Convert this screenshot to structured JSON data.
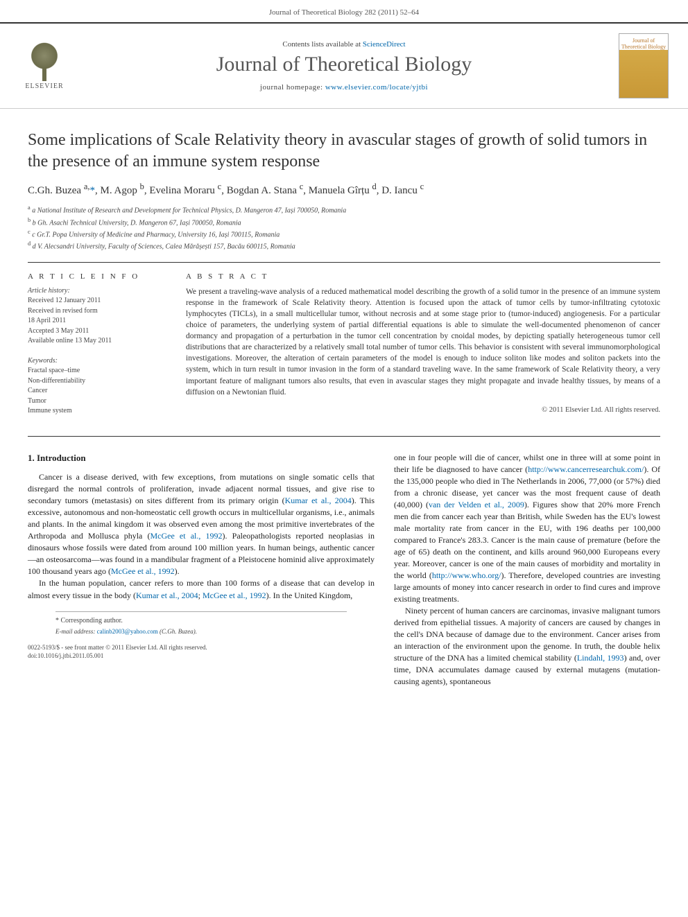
{
  "header": {
    "running_head": "Journal of Theoretical Biology 282 (2011) 52–64"
  },
  "banner": {
    "elsevier_label": "ELSEVIER",
    "contents_line_prefix": "Contents lists available at ",
    "contents_link": "ScienceDirect",
    "journal_name": "Journal of Theoretical Biology",
    "homepage_prefix": "journal homepage: ",
    "homepage_url": "www.elsevier.com/locate/yjtbi",
    "cover_title": "Journal of Theoretical Biology"
  },
  "article": {
    "title": "Some implications of Scale Relativity theory in avascular stages of growth of solid tumors in the presence of an immune system response",
    "authors_html": "C.Gh. Buzea <sup>a,</sup>*, M. Agop <sup>b</sup>, Evelina Moraru <sup>c</sup>, Bogdan A. Stana <sup>c</sup>, Manuela Gîrțu <sup>d</sup>, D. Iancu <sup>c</sup>",
    "affiliations": [
      "a National Institute of Research and Development for Technical Physics, D. Mangeron 47, Iași 700050, Romania",
      "b Gh. Asachi Technical University, D. Mangeron 67, Iași 700050, Romania",
      "c Gr.T. Popa University of Medicine and Pharmacy, University 16, Iași 700115, Romania",
      "d V. Alecsandri University, Faculty of Sciences, Calea Mărășești 157, Bacău 600115, Romania"
    ]
  },
  "meta": {
    "article_info_heading": "A R T I C L E   I N F O",
    "history_label": "Article history:",
    "history_lines": [
      "Received 12 January 2011",
      "Received in revised form",
      "18 April 2011",
      "Accepted 3 May 2011",
      "Available online 13 May 2011"
    ],
    "keywords_label": "Keywords:",
    "keywords": [
      "Fractal space–time",
      "Non-differentiability",
      "Cancer",
      "Tumor",
      "Immune system"
    ]
  },
  "abstract": {
    "heading": "A B S T R A C T",
    "text": "We present a traveling-wave analysis of a reduced mathematical model describing the growth of a solid tumor in the presence of an immune system response in the framework of Scale Relativity theory. Attention is focused upon the attack of tumor cells by tumor-infiltrating cytotoxic lymphocytes (TICLs), in a small multicellular tumor, without necrosis and at some stage prior to (tumor-induced) angiogenesis. For a particular choice of parameters, the underlying system of partial differential equations is able to simulate the well-documented phenomenon of cancer dormancy and propagation of a perturbation in the tumor cell concentration by cnoidal modes, by depicting spatially heterogeneous tumor cell distributions that are characterized by a relatively small total number of tumor cells. This behavior is consistent with several immunomorphological investigations. Moreover, the alteration of certain parameters of the model is enough to induce soliton like modes and soliton packets into the system, which in turn result in tumor invasion in the form of a standard traveling wave. In the same framework of Scale Relativity theory, a very important feature of malignant tumors also results, that even in avascular stages they might propagate and invade healthy tissues, by means of a diffusion on a Newtonian fluid.",
    "copyright": "© 2011 Elsevier Ltd. All rights reserved."
  },
  "body": {
    "section_number": "1.",
    "section_title": "Introduction",
    "col1_p1": "Cancer is a disease derived, with few exceptions, from mutations on single somatic cells that disregard the normal controls of proliferation, invade adjacent normal tissues, and give rise to secondary tumors (metastasis) on sites different from its primary origin (",
    "col1_p1_ref": "Kumar et al., 2004",
    "col1_p1_cont": "). This excessive, autonomous and non-homeostatic cell growth occurs in multicellular organisms, i.e., animals and plants. In the animal kingdom it was observed even among the most primitive invertebrates of the Arthropoda and Mollusca phyla (",
    "col1_p1_ref2": "McGee et al., 1992",
    "col1_p1_cont2": "). Paleopathologists reported neoplasias in dinosaurs whose fossils were dated from around 100 million years. In human beings, authentic cancer—an osteosarcoma—was found in a mandibular fragment of a Pleistocene hominid alive approximately 100 thousand years ago (",
    "col1_p1_ref3": "McGee et al., 1992",
    "col1_p1_end": ").",
    "col1_p2_start": "In the human population, cancer refers to more than 100 forms of a disease that can develop in almost every tissue in the body (",
    "col1_p2_ref1": "Kumar et al., 2004",
    "col1_p2_sep": "; ",
    "col1_p2_ref2": "McGee et al., 1992",
    "col1_p2_cont": "). In the United Kingdom,",
    "col2_p1_start": "one in four people will die of cancer, whilst one in three will at some point in their life be diagnosed to have cancer (",
    "col2_p1_url": "http://www.cancerresearchuk.com/",
    "col2_p1_cont": "). Of the 135,000 people who died in The Netherlands in 2006, 77,000 (or 57%) died from a chronic disease, yet cancer was the most frequent cause of death (40,000) (",
    "col2_p1_ref": "van der Velden et al., 2009",
    "col2_p1_cont2": "). Figures show that 20% more French men die from cancer each year than British, while Sweden has the EU's lowest male mortality rate from cancer in the EU, with 196 deaths per 100,000 compared to France's 283.3. Cancer is the main cause of premature (before the age of 65) death on the continent, and kills around 960,000 Europeans every year. Moreover, cancer is one of the main causes of morbidity and mortality in the world (",
    "col2_p1_url2": "http://www.who.org/",
    "col2_p1_end": "). Therefore, developed countries are investing large amounts of money into cancer research in order to find cures and improve existing treatments.",
    "col2_p2": "Ninety percent of human cancers are carcinomas, invasive malignant tumors derived from epithelial tissues. A majority of cancers are caused by changes in the cell's DNA because of damage due to the environment. Cancer arises from an interaction of the environment upon the genome. In truth, the double helix structure of the DNA has a limited chemical stability (",
    "col2_p2_ref": "Lindahl, 1993",
    "col2_p2_end": ") and, over time, DNA accumulates damage caused by external mutagens (mutation-causing agents), spontaneous"
  },
  "footer": {
    "corr_label": "* Corresponding author.",
    "email_label": "E-mail address: ",
    "email": "calinb2003@yahoo.com",
    "email_who": " (C.Gh. Buzea).",
    "issn_line": "0022-5193/$ - see front matter © 2011 Elsevier Ltd. All rights reserved.",
    "doi_line": "doi:10.1016/j.jtbi.2011.05.001"
  },
  "colors": {
    "link": "#0066aa",
    "rule": "#333333",
    "text": "#333333",
    "elsevier_orange": "#ec6500"
  }
}
